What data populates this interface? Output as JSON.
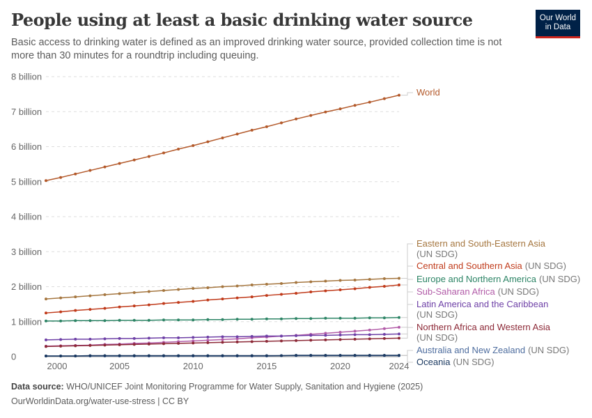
{
  "title": "People using at least a basic drinking water source",
  "subtitle": "Basic access to drinking water is defined as an improved drinking water source, provided collection time is not more than 30 minutes for a roundtrip including queuing.",
  "logo": "Our World in Data",
  "footer": {
    "source_label": "Data source:",
    "source": "WHO/UNICEF Joint Monitoring Programme for Water Supply, Sanitation and Hygiene (2025)",
    "url": "OurWorldinData.org/water-use-stress | CC BY"
  },
  "chart_data": {
    "type": "line",
    "title": "People using at least a basic drinking water source",
    "xlim": [
      2000,
      2024
    ],
    "ylim": [
      0,
      8
    ],
    "y_unit": "billion",
    "grid": "horizontal dashed",
    "legend": "right (line-end labels)",
    "x_ticks": [
      "2000",
      "2005",
      "2010",
      "2015",
      "2020",
      "2024"
    ],
    "y_ticks": [
      "0",
      "1 billion",
      "2 billion",
      "3 billion",
      "4 billion",
      "5 billion",
      "6 billion",
      "7 billion",
      "8 billion"
    ],
    "x": [
      2000,
      2001,
      2002,
      2003,
      2004,
      2005,
      2006,
      2007,
      2008,
      2009,
      2010,
      2011,
      2012,
      2013,
      2014,
      2015,
      2016,
      2017,
      2018,
      2019,
      2020,
      2021,
      2022,
      2023,
      2024
    ],
    "series": [
      {
        "name": "World",
        "suffix": "",
        "color": "#b3592a",
        "values": [
          5.03,
          5.12,
          5.22,
          5.32,
          5.42,
          5.52,
          5.62,
          5.72,
          5.82,
          5.93,
          6.03,
          6.14,
          6.25,
          6.36,
          6.47,
          6.57,
          6.68,
          6.79,
          6.89,
          6.99,
          7.08,
          7.18,
          7.27,
          7.37,
          7.47
        ]
      },
      {
        "name": "Eastern and South-Eastern Asia",
        "suffix": "(UN SDG)",
        "color": "#a5763f",
        "values": [
          1.65,
          1.68,
          1.71,
          1.74,
          1.77,
          1.8,
          1.83,
          1.86,
          1.89,
          1.92,
          1.95,
          1.97,
          2.0,
          2.02,
          2.05,
          2.07,
          2.09,
          2.12,
          2.14,
          2.16,
          2.18,
          2.19,
          2.21,
          2.23,
          2.24
        ]
      },
      {
        "name": "Central and Southern Asia",
        "suffix": "(UN SDG)",
        "color": "#c03a1a",
        "values": [
          1.25,
          1.28,
          1.32,
          1.35,
          1.38,
          1.42,
          1.45,
          1.48,
          1.52,
          1.55,
          1.58,
          1.62,
          1.65,
          1.68,
          1.71,
          1.75,
          1.78,
          1.81,
          1.85,
          1.88,
          1.91,
          1.94,
          1.98,
          2.01,
          2.05
        ]
      },
      {
        "name": "Europe and Northern America",
        "suffix": "(UN SDG)",
        "color": "#2c8465",
        "values": [
          1.02,
          1.02,
          1.03,
          1.03,
          1.03,
          1.04,
          1.04,
          1.04,
          1.05,
          1.05,
          1.05,
          1.06,
          1.06,
          1.07,
          1.07,
          1.08,
          1.08,
          1.09,
          1.09,
          1.1,
          1.1,
          1.1,
          1.11,
          1.11,
          1.12
        ]
      },
      {
        "name": "Sub-Saharan Africa",
        "suffix": "(UN SDG)",
        "color": "#b25ca8",
        "values": [
          0.3,
          0.31,
          0.32,
          0.33,
          0.35,
          0.36,
          0.38,
          0.39,
          0.41,
          0.43,
          0.45,
          0.47,
          0.49,
          0.51,
          0.54,
          0.56,
          0.59,
          0.61,
          0.64,
          0.67,
          0.7,
          0.73,
          0.76,
          0.8,
          0.84
        ]
      },
      {
        "name": "Latin America and the Caribbean",
        "suffix": "(UN SDG)",
        "color": "#6d3fa6",
        "values": [
          0.48,
          0.49,
          0.5,
          0.5,
          0.51,
          0.52,
          0.52,
          0.53,
          0.54,
          0.54,
          0.55,
          0.56,
          0.57,
          0.57,
          0.58,
          0.59,
          0.59,
          0.6,
          0.61,
          0.61,
          0.62,
          0.63,
          0.63,
          0.64,
          0.65
        ]
      },
      {
        "name": "Northern Africa and Western Asia",
        "suffix": "(UN SDG)",
        "color": "#8c2836",
        "values": [
          0.29,
          0.3,
          0.31,
          0.32,
          0.33,
          0.34,
          0.35,
          0.36,
          0.37,
          0.38,
          0.39,
          0.4,
          0.41,
          0.42,
          0.43,
          0.44,
          0.45,
          0.46,
          0.47,
          0.48,
          0.49,
          0.5,
          0.51,
          0.52,
          0.53
        ]
      },
      {
        "name": "Australia and New Zealand",
        "suffix": "(UN SDG)",
        "color": "#4d6c9e",
        "values": [
          0.02,
          0.02,
          0.02,
          0.02,
          0.02,
          0.02,
          0.02,
          0.02,
          0.02,
          0.02,
          0.02,
          0.02,
          0.02,
          0.02,
          0.02,
          0.02,
          0.03,
          0.03,
          0.03,
          0.03,
          0.03,
          0.03,
          0.03,
          0.03,
          0.03
        ]
      },
      {
        "name": "Oceania",
        "suffix": "(UN SDG)",
        "color": "#18375f",
        "values": [
          0.02,
          0.02,
          0.02,
          0.03,
          0.03,
          0.03,
          0.03,
          0.03,
          0.03,
          0.03,
          0.03,
          0.03,
          0.03,
          0.03,
          0.03,
          0.03,
          0.03,
          0.04,
          0.04,
          0.04,
          0.04,
          0.04,
          0.04,
          0.04,
          0.04
        ]
      }
    ]
  }
}
